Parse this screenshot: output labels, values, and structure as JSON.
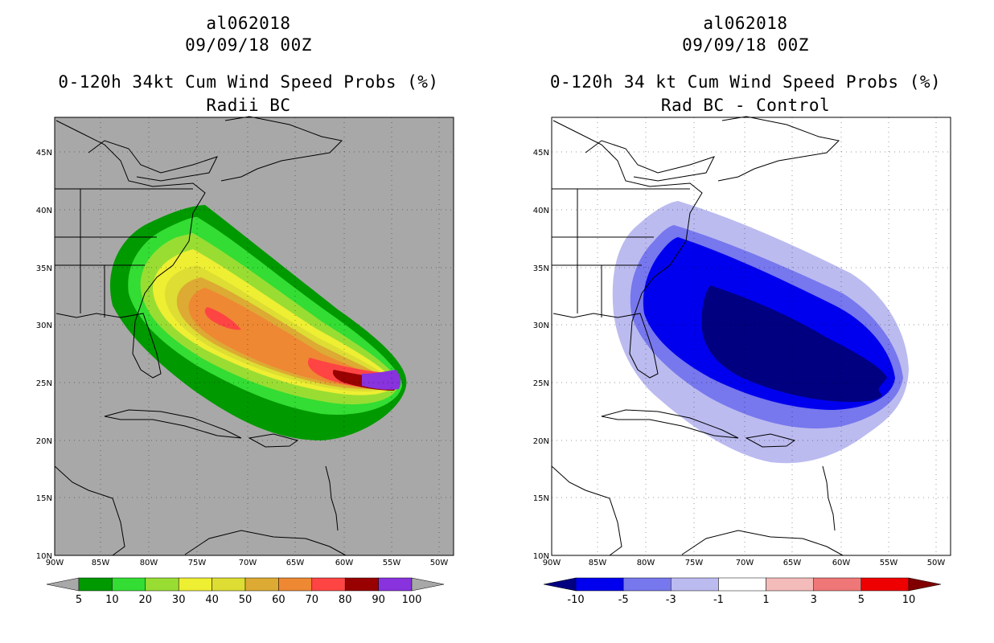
{
  "left": {
    "title_line1": "al062018",
    "title_line2": "09/09/18 00Z",
    "title_line3": "0-120h 34kt Cum Wind Speed Probs (%)",
    "title_line4": "Radii BC",
    "background": "#a8a8a8",
    "colorbar": {
      "labels": [
        "5",
        "10",
        "20",
        "30",
        "40",
        "50",
        "60",
        "70",
        "80",
        "90",
        "100"
      ],
      "colors": [
        "#a8a8a8",
        "#009900",
        "#33dd33",
        "#99dd33",
        "#eeee33",
        "#dddd33",
        "#ddaa33",
        "#ee8833",
        "#ff4444",
        "#990000",
        "#8833dd",
        "#a8a8a8"
      ]
    }
  },
  "right": {
    "title_line1": "al062018",
    "title_line2": "09/09/18 00Z",
    "title_line3": "0-120h 34 kt Cum Wind Speed Probs (%)",
    "title_line4": "Rad BC - Control",
    "background": "#ffffff",
    "colorbar": {
      "labels": [
        "-10",
        "-5",
        "-3",
        "-1",
        "1",
        "3",
        "5",
        "10"
      ],
      "colors": [
        "#000080",
        "#0000ee",
        "#7777ee",
        "#bbbbf0",
        "#ffffff",
        "#f4bbbb",
        "#f07777",
        "#ee0000",
        "#800000"
      ]
    }
  },
  "axes": {
    "lat_labels": [
      "45N",
      "40N",
      "35N",
      "30N",
      "25N",
      "20N",
      "15N",
      "10N"
    ],
    "lon_labels": [
      "90W",
      "85W",
      "80W",
      "75W",
      "70W",
      "65W",
      "60W",
      "55W",
      "50W"
    ]
  }
}
